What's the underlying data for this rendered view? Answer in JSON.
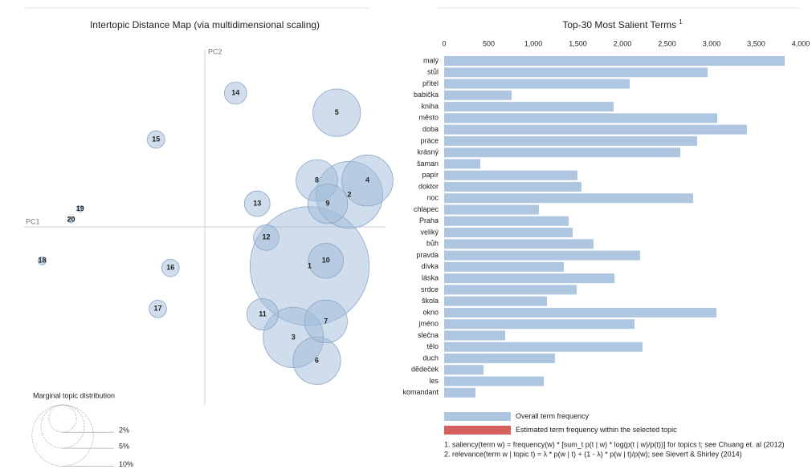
{
  "chart_data": [
    {
      "type": "scatter",
      "title": "Intertopic Distance Map (via multidimensional scaling)",
      "x_label": "PC1",
      "y_label": "PC2",
      "labels": [
        "1",
        "2",
        "3",
        "4",
        "5",
        "6",
        "7",
        "8",
        "9",
        "10",
        "11",
        "12",
        "13",
        "14",
        "15",
        "16",
        "17",
        "18",
        "19",
        "20"
      ],
      "x": [
        0.58,
        0.8,
        0.49,
        0.9,
        0.73,
        0.62,
        0.67,
        0.62,
        0.68,
        0.67,
        0.32,
        0.34,
        0.29,
        0.17,
        -0.27,
        -0.19,
        -0.26,
        -0.9,
        -0.69,
        -0.74
      ],
      "y": [
        -0.22,
        0.18,
        -0.62,
        0.26,
        0.64,
        -0.75,
        -0.53,
        0.26,
        0.13,
        -0.19,
        -0.49,
        -0.06,
        0.13,
        0.75,
        0.49,
        -0.23,
        -0.46,
        -0.19,
        0.1,
        0.04
      ],
      "sizes": [
        37,
        11.7,
        9.5,
        6.8,
        5.9,
        5.9,
        4.8,
        4.5,
        4.1,
        3.2,
        2.6,
        1.7,
        1.7,
        1.3,
        0.8,
        0.8,
        0.8,
        0.17,
        0.1,
        0.1
      ],
      "xlim": [
        -1,
        1
      ],
      "ylim": [
        -1,
        1
      ],
      "color": "#9fbbd9",
      "size_legend_title": "Marginal topic distribution",
      "size_legend": [
        {
          "value": 2,
          "label": "2%"
        },
        {
          "value": 5,
          "label": "5%"
        },
        {
          "value": 10,
          "label": "10%"
        }
      ]
    },
    {
      "type": "hbar",
      "title": "Top-30 Most Salient Terms",
      "title_note": "1",
      "categories": [
        "malý",
        "stůl",
        "přítel",
        "babička",
        "kniha",
        "město",
        "doba",
        "práce",
        "krásný",
        "šaman",
        "papír",
        "doktor",
        "noc",
        "chlapec",
        "Praha",
        "veliký",
        "bůh",
        "pravda",
        "dívka",
        "láska",
        "srdce",
        "škola",
        "okno",
        "jméno",
        "slečna",
        "tělo",
        "duch",
        "dědeček",
        "les",
        "komandant"
      ],
      "series": [
        {
          "name": "Overall term frequency",
          "color": "#aec6e0",
          "values": [
            3820,
            2955,
            2081,
            757,
            1901,
            3063,
            3396,
            2838,
            2649,
            405,
            1495,
            1541,
            2793,
            1063,
            1396,
            1441,
            1676,
            2198,
            1342,
            1910,
            1486,
            1153,
            3054,
            2135,
            685,
            2225,
            1243,
            441,
            1117,
            351
          ]
        }
      ],
      "extra_legend": [
        {
          "name": "Estimated term frequency within the selected topic",
          "color": "#d6605e"
        }
      ],
      "xlim": [
        0,
        4000
      ],
      "xticks": [
        0,
        500,
        {
          "value": 1000,
          "label": "1,000"
        },
        {
          "value": 1500,
          "label": "1,500"
        },
        {
          "value": 2000,
          "label": "2,000"
        },
        {
          "value": 2500,
          "label": "2,500"
        },
        {
          "value": 3000,
          "label": "3,000"
        },
        {
          "value": 3500,
          "label": "3,500"
        },
        {
          "value": 4000,
          "label": "4,000"
        }
      ],
      "notes": [
        "1. saliency(term w) = frequency(w) * [sum_t p(t | w) * log(p(t | w)/p(t))] for topics t; see Chuang et. al (2012)",
        "2. relevance(term w | topic t) = λ * p(w | t) + (1 - λ) * p(w | t)/p(w); see Sievert & Shirley (2014)"
      ]
    }
  ]
}
